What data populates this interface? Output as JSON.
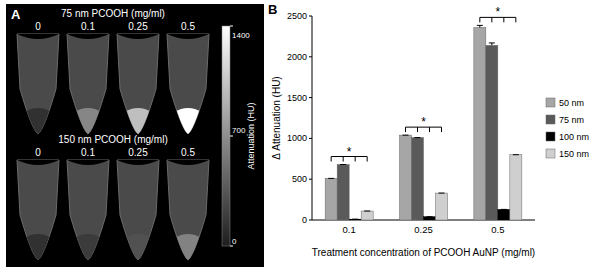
{
  "panel_a": {
    "label": "A",
    "rows": [
      {
        "title": "75 nm PCOOH (mg/ml)",
        "concentrations": [
          0,
          0.1,
          0.25,
          0.5
        ],
        "attenuation": [
          120,
          650,
          1000,
          1400
        ]
      },
      {
        "title": "150 nm PCOOH (mg/ml)",
        "concentrations": [
          0,
          0.1,
          0.25,
          0.5
        ],
        "attenuation": [
          120,
          180,
          320,
          620
        ]
      }
    ],
    "colorbar": {
      "label": "Attenuation (HU)",
      "range": [
        0,
        1400
      ],
      "ticks": [
        0,
        700,
        1400
      ]
    }
  },
  "chart_data": {
    "type": "bar",
    "panel_label": "B",
    "x_label": "Treatment concentration of PCOOH AuNP (mg/ml)",
    "y_label": "Δ Attenuation (HU)",
    "categories": [
      "0.1",
      "0.25",
      "0.5"
    ],
    "series": [
      {
        "name": "50 nm",
        "color": "#a6a6a6",
        "values": [
          510,
          1040,
          2360
        ],
        "errors": [
          0,
          0,
          25
        ]
      },
      {
        "name": "75 nm",
        "color": "#5a5a5a",
        "values": [
          680,
          1010,
          2140
        ],
        "errors": [
          0,
          0,
          30
        ]
      },
      {
        "name": "100 nm",
        "color": "#000000",
        "values": [
          10,
          40,
          130
        ],
        "errors": [
          0,
          0,
          0
        ]
      },
      {
        "name": "150 nm",
        "color": "#cfcfcf",
        "values": [
          110,
          330,
          800
        ],
        "errors": [
          0,
          0,
          0
        ]
      }
    ],
    "significance": [
      "*",
      "*",
      "*"
    ],
    "ylim": [
      0,
      2500
    ],
    "yticks": [
      0,
      500,
      1000,
      1500,
      2000,
      2500
    ],
    "grid": false,
    "legend": "right"
  }
}
